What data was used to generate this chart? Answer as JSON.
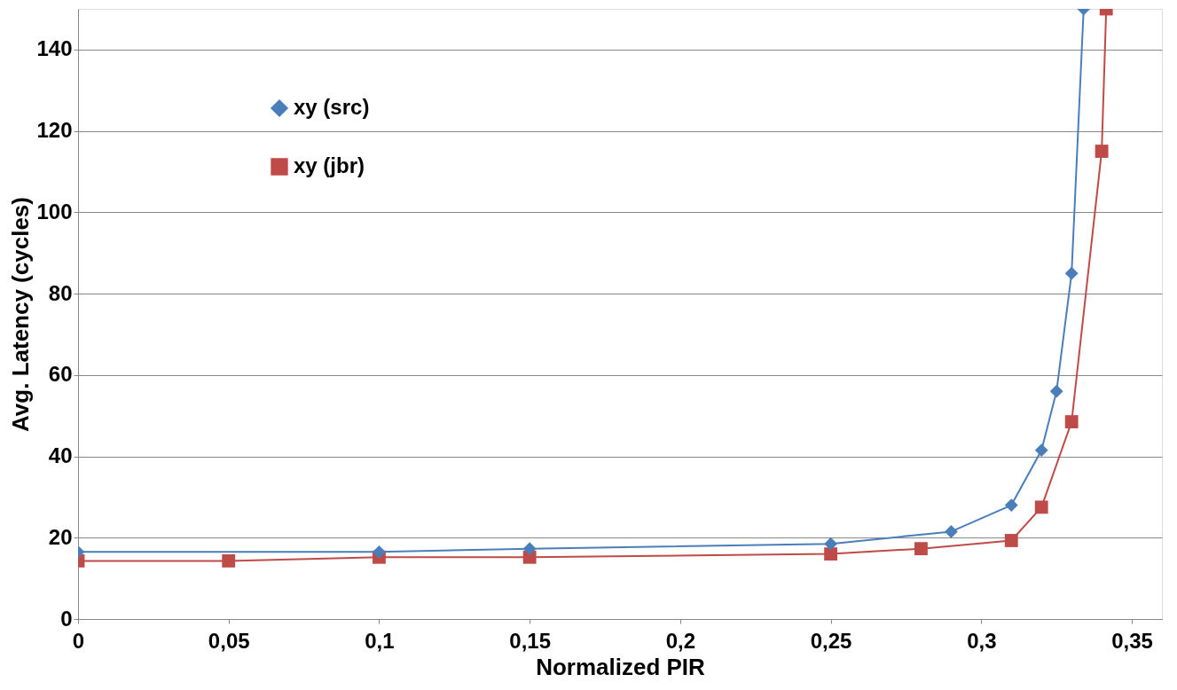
{
  "chart_data": {
    "type": "line",
    "xlabel": "Normalized PIR",
    "ylabel": "Avg. Latency (cycles)",
    "series": [
      {
        "name": "xy (src)",
        "color": "#4a7ebb",
        "marker": "diamond",
        "x": [
          0,
          0.1,
          0.15,
          0.25,
          0.29,
          0.31,
          0.32,
          0.325,
          0.33,
          0.334
        ],
        "values": [
          16.5,
          16.5,
          17.3,
          18.5,
          21.5,
          28,
          41.5,
          56,
          85,
          150
        ]
      },
      {
        "name": "xy (jbr)",
        "color": "#be4b48",
        "marker": "square",
        "x": [
          0,
          0.05,
          0.1,
          0.15,
          0.25,
          0.28,
          0.31,
          0.32,
          0.33,
          0.34,
          0.3415
        ],
        "values": [
          14.3,
          14.3,
          15.2,
          15.2,
          16,
          17.3,
          19.3,
          27.5,
          48.5,
          115,
          150
        ]
      }
    ],
    "xlim": [
      0,
      0.36
    ],
    "ylim": [
      0,
      150
    ],
    "xticks": [
      0,
      {
        "value": 0.05,
        "label": "0,05"
      },
      {
        "value": 0.1,
        "label": "0,1"
      },
      {
        "value": 0.15,
        "label": "0,15"
      },
      {
        "value": 0.2,
        "label": "0,2"
      },
      {
        "value": 0.25,
        "label": "0,25"
      },
      {
        "value": 0.3,
        "label": "0,3"
      },
      {
        "value": 0.35,
        "label": "0,35"
      }
    ],
    "yticks": [
      0,
      20,
      40,
      60,
      80,
      100,
      120,
      140
    ],
    "grid": "y",
    "legend": "top left",
    "line_style": "solid"
  }
}
